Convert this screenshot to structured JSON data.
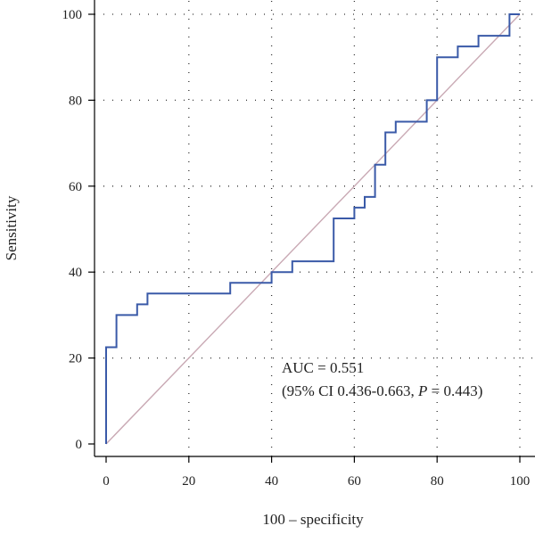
{
  "chart_data": {
    "type": "line",
    "title": "",
    "xlabel": "100 – specificity",
    "ylabel": "Sensitivity",
    "xlim": [
      0,
      100
    ],
    "ylim": [
      0,
      100
    ],
    "xticks": [
      "0",
      "20",
      "40",
      "60",
      "80",
      "100"
    ],
    "yticks": [
      "0",
      "20",
      "40",
      "60",
      "80",
      "100"
    ],
    "grid": true,
    "colors": {
      "roc": "#3a5aa8",
      "reference": "#c9a9b4"
    },
    "series": [
      {
        "x": [
          0,
          0,
          2.5,
          2.5,
          7.5,
          7.5,
          10,
          10,
          30,
          30,
          40,
          40,
          45,
          45,
          55,
          55,
          60,
          60,
          62.5,
          62.5,
          65,
          65,
          67.5,
          67.5,
          70,
          70,
          77.5,
          77.5,
          80,
          80,
          85,
          85,
          90,
          90,
          97.5,
          97.5,
          100
        ],
        "y": [
          0,
          22.5,
          22.5,
          30,
          30,
          32.5,
          32.5,
          35,
          35,
          37.5,
          37.5,
          40,
          40,
          42.5,
          42.5,
          52.5,
          52.5,
          55,
          55,
          57.5,
          57.5,
          65,
          65,
          72.5,
          72.5,
          75,
          75,
          80,
          80,
          90,
          90,
          92.5,
          92.5,
          95,
          95,
          100,
          100
        ]
      },
      {
        "x": [
          0,
          100
        ],
        "y": [
          0,
          100
        ]
      }
    ],
    "annotations": {
      "auc": "AUC = 0.551",
      "ci_prefix": "(95% CI 0.436-0.663, ",
      "p_symbol": "P",
      "p_suffix": " = 0.443)"
    }
  }
}
